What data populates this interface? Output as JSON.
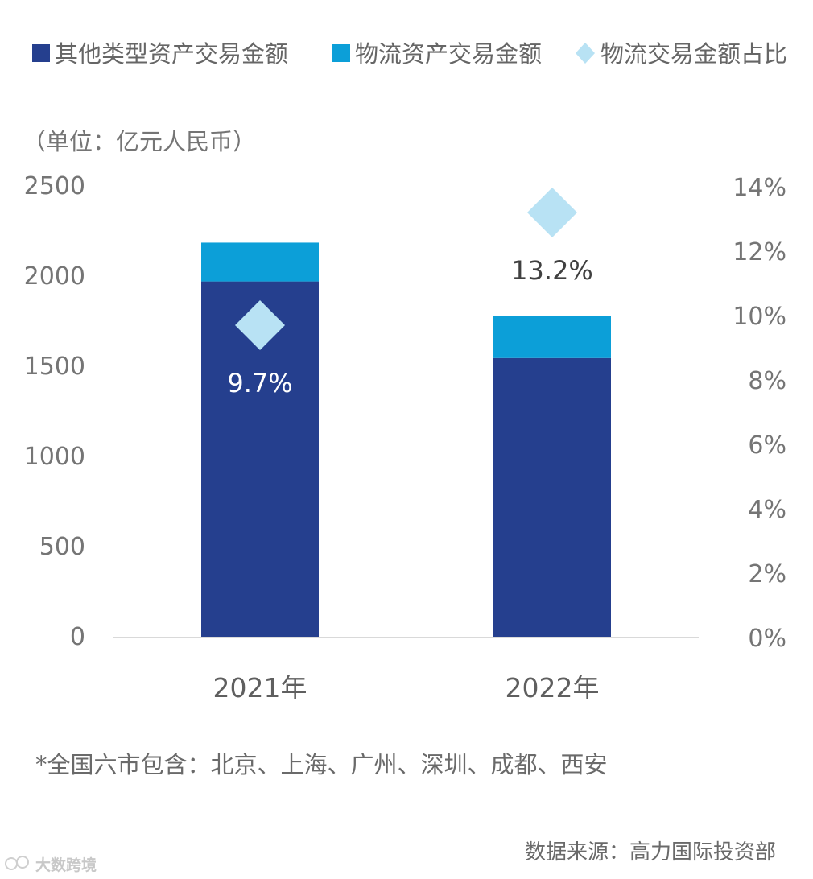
{
  "unit_label": "（单位：亿元人民币）",
  "note": "*全国六市包含：北京、上海、广州、深圳、成都、西安",
  "source": "数据来源：高力国际投资部",
  "watermark": "大数跨境",
  "colors": {
    "other": "#253f8e",
    "logistics": "#0c9fd8",
    "ratio": "#b8e2f4",
    "baseline": "#d9d9d9"
  },
  "chart_data": {
    "type": "bar",
    "stacked": true,
    "categories": [
      "2021年",
      "2022年"
    ],
    "series": [
      {
        "name": "其他类型资产交易金额",
        "kind": "bar",
        "axis": "left",
        "values": [
          1975,
          1550
        ]
      },
      {
        "name": "物流资产交易金额",
        "kind": "bar",
        "axis": "left",
        "values": [
          215,
          235
        ]
      },
      {
        "name": "物流交易金额占比",
        "kind": "marker",
        "axis": "right",
        "values": [
          9.7,
          13.2
        ],
        "labels": [
          "9.7%",
          "13.2%"
        ]
      }
    ],
    "ylim_left": [
      0,
      2500
    ],
    "yticks_left": [
      "2500",
      "2000",
      "1500",
      "1000",
      "500",
      "0"
    ],
    "ylim_right": [
      0,
      14
    ],
    "yticks_right": [
      "14%",
      "12%",
      "10%",
      "8%",
      "6%",
      "4%",
      "2%",
      "0%"
    ],
    "legend_position": "top",
    "grid": false
  }
}
